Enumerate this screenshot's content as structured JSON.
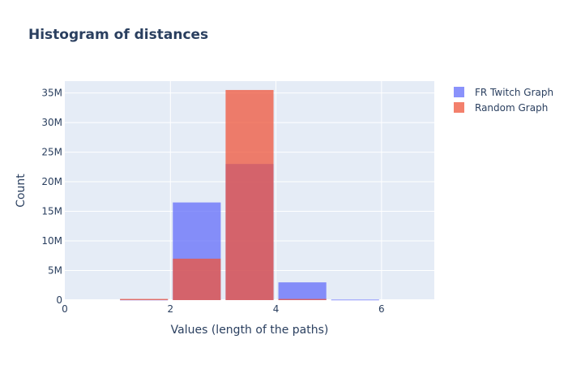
{
  "chart_data": {
    "type": "bar",
    "title": "Histogram of distances",
    "xlabel": "Values (length of the paths)",
    "ylabel": "Count",
    "xlim": [
      0,
      7
    ],
    "ylim": [
      0,
      37000000
    ],
    "x_ticks": [
      {
        "value": 0,
        "label": "0"
      },
      {
        "value": 2,
        "label": "2"
      },
      {
        "value": 4,
        "label": "4"
      },
      {
        "value": 6,
        "label": "6"
      }
    ],
    "y_ticks": [
      {
        "value": 0,
        "label": "0"
      },
      {
        "value": 5000000,
        "label": "5M"
      },
      {
        "value": 10000000,
        "label": "10M"
      },
      {
        "value": 15000000,
        "label": "15M"
      },
      {
        "value": 20000000,
        "label": "20M"
      },
      {
        "value": 25000000,
        "label": "25M"
      },
      {
        "value": 30000000,
        "label": "30M"
      },
      {
        "value": 35000000,
        "label": "35M"
      }
    ],
    "bins": [
      [
        1,
        2
      ],
      [
        2,
        3
      ],
      [
        3,
        4
      ],
      [
        4,
        5
      ],
      [
        5,
        6
      ]
    ],
    "series": [
      {
        "name": "FR Twitch Graph",
        "color": "#636efa",
        "opacity": 0.75,
        "values": [
          100000,
          16500000,
          23000000,
          3000000,
          100000
        ]
      },
      {
        "name": "Random Graph",
        "color": "#ef553b",
        "opacity": 0.75,
        "values": [
          200000,
          7000000,
          35500000,
          200000,
          0
        ]
      }
    ],
    "grid": true,
    "legend_position": "top-right",
    "plot_bgcolor": "#e5ecf6"
  }
}
